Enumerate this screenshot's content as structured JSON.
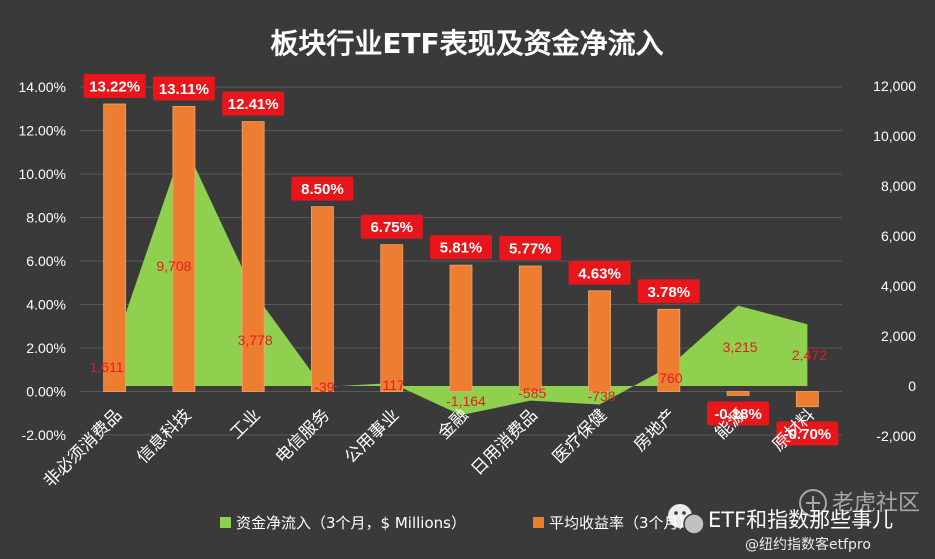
{
  "chart_data": {
    "type": "bar",
    "title": "板块行业ETF表现及资金净流入",
    "categories": [
      "非必须消费品",
      "信息科技",
      "工业",
      "电信服务",
      "公用事业",
      "金融",
      "日用消费品",
      "医疗保健",
      "房地产",
      "能源",
      "原材料"
    ],
    "series": [
      {
        "name": "资金净流入（3个月，$ Millions）",
        "type": "area",
        "axis": "right",
        "color": "#8fd14f",
        "values": [
          1611,
          9708,
          3778,
          -39,
          117,
          -1164,
          -585,
          -738,
          760,
          3215,
          2472
        ],
        "labels": [
          "1,611",
          "9,708",
          "3,778",
          "-39",
          "117",
          "-1,164",
          "-585",
          "-738",
          "760",
          "3,215",
          "2,472"
        ]
      },
      {
        "name": "平均收益率（3个月）",
        "type": "bar",
        "axis": "left",
        "color": "#ed7d31",
        "values": [
          13.22,
          13.11,
          12.41,
          8.5,
          6.75,
          5.81,
          5.77,
          4.63,
          3.78,
          -0.18,
          -0.7
        ],
        "labels": [
          "13.22%",
          "13.11%",
          "12.41%",
          "8.50%",
          "6.75%",
          "5.81%",
          "5.77%",
          "4.63%",
          "3.78%",
          "-0.18%",
          "-0.70%"
        ]
      }
    ],
    "y_left": {
      "ylim": [
        -2,
        14
      ],
      "ticks": [
        -2,
        0,
        2,
        4,
        6,
        8,
        10,
        12,
        14
      ],
      "tick_labels": [
        "-2.00%",
        "0.00%",
        "2.00%",
        "4.00%",
        "6.00%",
        "8.00%",
        "10.00%",
        "12.00%",
        "14.00%"
      ]
    },
    "y_right": {
      "ylim": [
        -2000,
        12000
      ],
      "ticks": [
        -2000,
        0,
        2000,
        4000,
        6000,
        8000,
        10000,
        12000
      ],
      "tick_labels": [
        "-2,000",
        "0",
        "2,000",
        "4,000",
        "6,000",
        "8,000",
        "10,000",
        "12,000"
      ]
    },
    "grid": true,
    "legend_position": "bottom",
    "colors": {
      "background": "#3a3a3a",
      "grid": "#5a5a5a",
      "label_box": "#e8161b",
      "flow_label": "#e41c1c"
    }
  },
  "watermarks": {
    "wechat": "ETF和指数那些事儿",
    "forum": "老虎社区",
    "author": "@纽约指数客etfpro"
  }
}
